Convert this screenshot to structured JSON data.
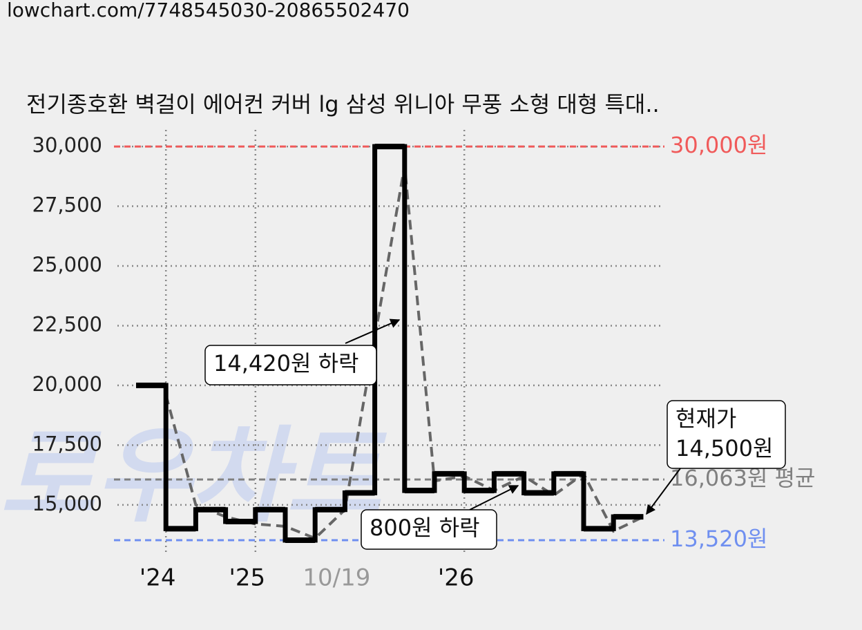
{
  "url": "lowchart.com/7748545030-20865502470",
  "chart_data": {
    "type": "step",
    "title": "전기종호환 벽걸이 에어컨 커버 lg 삼성 위니아 무풍 소형 대형 특대..",
    "watermark": "로우차트",
    "categories": [
      null,
      "'24",
      null,
      null,
      "'25",
      null,
      null,
      "10/19",
      null,
      null,
      null,
      "'26",
      null,
      null,
      null,
      null,
      null
    ],
    "series": [
      {
        "color": "#000000",
        "style": "step",
        "values": [
          20000,
          14000,
          14800,
          14300,
          14800,
          13520,
          14800,
          15500,
          30000,
          15600,
          16300,
          15600,
          16300,
          15500,
          16300,
          14000,
          14500
        ]
      },
      {
        "color": "#666666",
        "style": "dashed",
        "values": [
          19600,
          15000,
          14500,
          14200,
          14100,
          13600,
          14800,
          22000,
          29200,
          16000,
          16200,
          15600,
          16200,
          15400,
          16300,
          13900,
          14500
        ]
      }
    ],
    "ylim": [
      13000,
      30350
    ],
    "yticks": [
      {
        "value": 15000,
        "label": "15,000"
      },
      {
        "value": 17500,
        "label": "17,500"
      },
      {
        "value": 20000,
        "label": "20,000"
      },
      {
        "value": 22500,
        "label": "22,500"
      },
      {
        "value": 25000,
        "label": "25,000"
      },
      {
        "value": 27500,
        "label": "27,500"
      },
      {
        "value": 30000,
        "label": "30,000"
      }
    ],
    "grid": true,
    "reference_lines": [
      {
        "value": 30000,
        "label": "30,000원",
        "color": "#f05a5a"
      },
      {
        "value": 16063,
        "label": "16,063원 평균",
        "color": "#808080"
      },
      {
        "value": 13520,
        "label": "13,520원",
        "color": "#6f8ff0"
      }
    ],
    "annotations": [
      {
        "lines": [
          "14,420원 하락"
        ]
      },
      {
        "lines": [
          "800원 하락"
        ]
      },
      {
        "lines": [
          "현재가",
          "14,500원"
        ]
      }
    ]
  }
}
